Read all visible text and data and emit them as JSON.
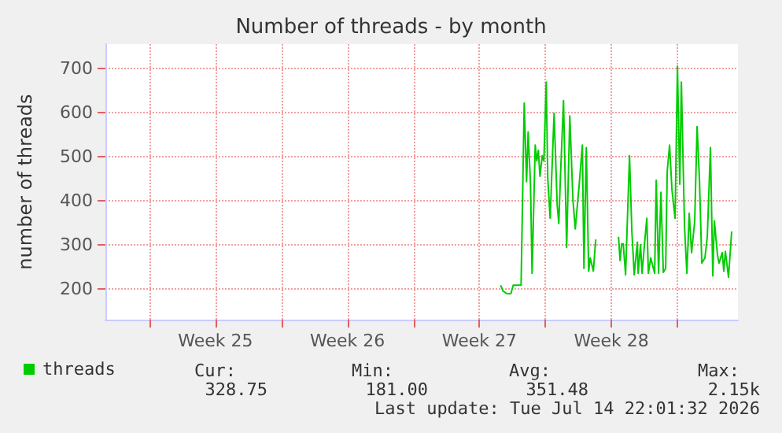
{
  "chart_data": {
    "type": "line",
    "title": "Number of threads - by month",
    "ylabel": "number of threads",
    "x": [
      "2026-07-02T15:00",
      "2026-07-02T18:00",
      "2026-07-02T23:00",
      "2026-07-03T04:00",
      "2026-07-03T07:00",
      "2026-07-03T17:00",
      "2026-07-03T21:00",
      "2026-07-04T00:00",
      "2026-07-04T02:00",
      "2026-07-04T05:00",
      "2026-07-04T07:00",
      "2026-07-04T11:00",
      "2026-07-04T13:00",
      "2026-07-04T15:00",
      "2026-07-04T17:00",
      "2026-07-04T20:00",
      "2026-07-04T22:00",
      "2026-07-05T01:00",
      "2026-07-05T03:00",
      "2026-07-05T06:00",
      "2026-07-05T11:00",
      "2026-07-05T15:00",
      "2026-07-05T17:00",
      "2026-07-05T19:00",
      "2026-07-05T23:00",
      "2026-07-06T03:00",
      "2026-07-06T07:00",
      "2026-07-06T11:00",
      "2026-07-06T14:00",
      "2026-07-06T19:00",
      "2026-07-06T23:00",
      "2026-07-07T01:00",
      "2026-07-07T04:00",
      "2026-07-07T07:00",
      "2026-07-07T09:00",
      "2026-07-07T13:00",
      "2026-07-07T16:00",
      "2026-07-08T05:00",
      "2026-07-08T21:00",
      "2026-07-08T23:00",
      "2026-07-09T01:00",
      "2026-07-09T03:00",
      "2026-07-09T06:00",
      "2026-07-09T11:00",
      "2026-07-09T14:00",
      "2026-07-09T17:00",
      "2026-07-09T21:00",
      "2026-07-09T22:00",
      "2026-07-10T01:00",
      "2026-07-10T03:00",
      "2026-07-10T06:00",
      "2026-07-10T09:00",
      "2026-07-10T11:00",
      "2026-07-10T14:00",
      "2026-07-10T19:00",
      "2026-07-10T21:00",
      "2026-07-11T00:00",
      "2026-07-11T03:00",
      "2026-07-11T06:00",
      "2026-07-11T09:00",
      "2026-07-11T11:00",
      "2026-07-11T14:00",
      "2026-07-11T17:00",
      "2026-07-11T21:00",
      "2026-07-12T00:00",
      "2026-07-12T03:00",
      "2026-07-12T05:00",
      "2026-07-12T09:00",
      "2026-07-12T12:00",
      "2026-07-12T15:00",
      "2026-07-12T18:00",
      "2026-07-12T22:00",
      "2026-07-13T01:00",
      "2026-07-13T04:00",
      "2026-07-13T07:00",
      "2026-07-13T11:00",
      "2026-07-13T14:00",
      "2026-07-13T18:00",
      "2026-07-13T21:00",
      "2026-07-13T23:00",
      "2026-07-14T03:00",
      "2026-07-14T05:00",
      "2026-07-14T09:00",
      "2026-07-14T11:00",
      "2026-07-14T13:00",
      "2026-07-14T17:00",
      "2026-07-14T21:00"
    ],
    "series": [
      {
        "name": "threads",
        "color": "#00cc00",
        "values": [
          208,
          195,
          189,
          189,
          208,
          208,
          621,
          443,
          556,
          437,
          235,
          526,
          490,
          514,
          455,
          502,
          490,
          669,
          449,
          360,
          598,
          389,
          348,
          449,
          627,
          294,
          592,
          401,
          336,
          437,
          526,
          246,
          520,
          240,
          270,
          240,
          312,
          null,
          318,
          264,
          302,
          302,
          232,
          502,
          330,
          232,
          306,
          235,
          300,
          235,
          300,
          360,
          235,
          270,
          235,
          446,
          235,
          419,
          237,
          246,
          467,
          526,
          425,
          360,
          705,
          437,
          669,
          342,
          235,
          371,
          282,
          354,
          568,
          449,
          258,
          270,
          318,
          520,
          229,
          354,
          276,
          258,
          282,
          240,
          285,
          226,
          330
        ]
      }
    ],
    "xlim": [
      "2026-06-11T16:00",
      "2026-07-15T05:00"
    ],
    "xticks": [
      {
        "value": "2026-06-14",
        "label": null
      },
      {
        "value": "2026-06-17T12:00",
        "label": "Week 25"
      },
      {
        "value": "2026-06-21",
        "label": null
      },
      {
        "value": "2026-06-24T12:00",
        "label": "Week 26"
      },
      {
        "value": "2026-06-28",
        "label": null
      },
      {
        "value": "2026-07-01T12:00",
        "label": "Week 27"
      },
      {
        "value": "2026-07-05",
        "label": null
      },
      {
        "value": "2026-07-08T12:00",
        "label": "Week 28"
      },
      {
        "value": "2026-07-12",
        "label": null
      }
    ],
    "ylim": [
      130,
      755
    ],
    "yticks": [
      200,
      300,
      400,
      500,
      600,
      700
    ],
    "grid": true,
    "legend": "bottom left",
    "marker": "none",
    "line_style": "solid",
    "annotations": [
      "Cur:",
      "Min:",
      "Avg:",
      "Max:",
      "328.75",
      "181.00",
      "351.48",
      "2.15k",
      "Last update: Tue Jul 14 22:01:32 2026"
    ]
  }
}
